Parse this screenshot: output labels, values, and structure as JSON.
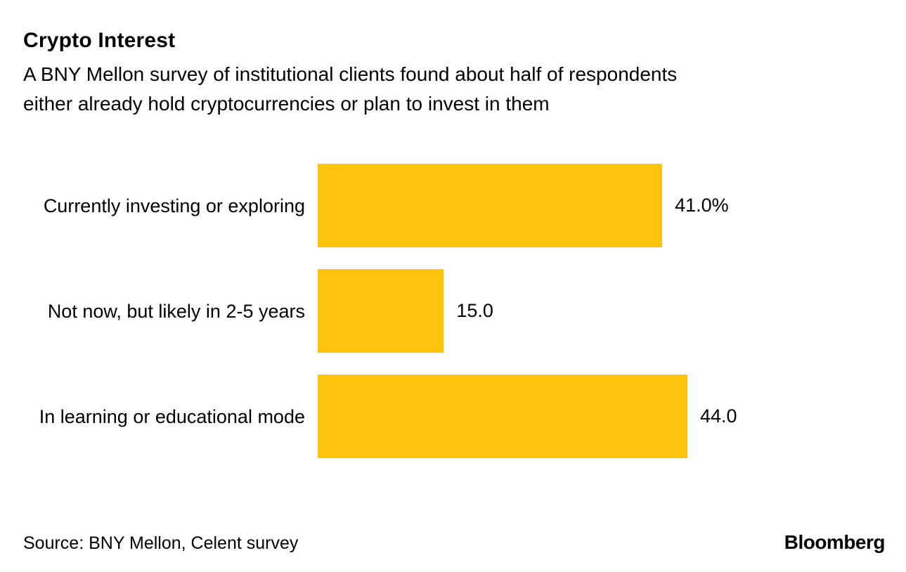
{
  "chart_data": {
    "type": "bar",
    "orientation": "horizontal",
    "title": "Crypto Interest",
    "subtitle": "A BNY Mellon survey of institutional clients found about half of respondents either already hold cryptocurrencies or plan to invest in them",
    "subtitle_lines": [
      "A BNY Mellon survey of institutional clients found about half of respondents",
      "either already hold cryptocurrencies or plan to invest in them"
    ],
    "categories": [
      "Currently investing or exploring",
      "Not now, but likely in 2-5 years",
      "In learning or educational mode"
    ],
    "values": [
      41.0,
      15.0,
      44.0
    ],
    "value_labels": [
      "41.0%",
      "15.0",
      "44.0"
    ],
    "unit": "%",
    "bar_color": "#FDC40D",
    "xlim": [
      0,
      44
    ],
    "grid": false,
    "legend": false
  },
  "footer": {
    "source": "Source: BNY Mellon, Celent survey",
    "brand": "Bloomberg"
  }
}
